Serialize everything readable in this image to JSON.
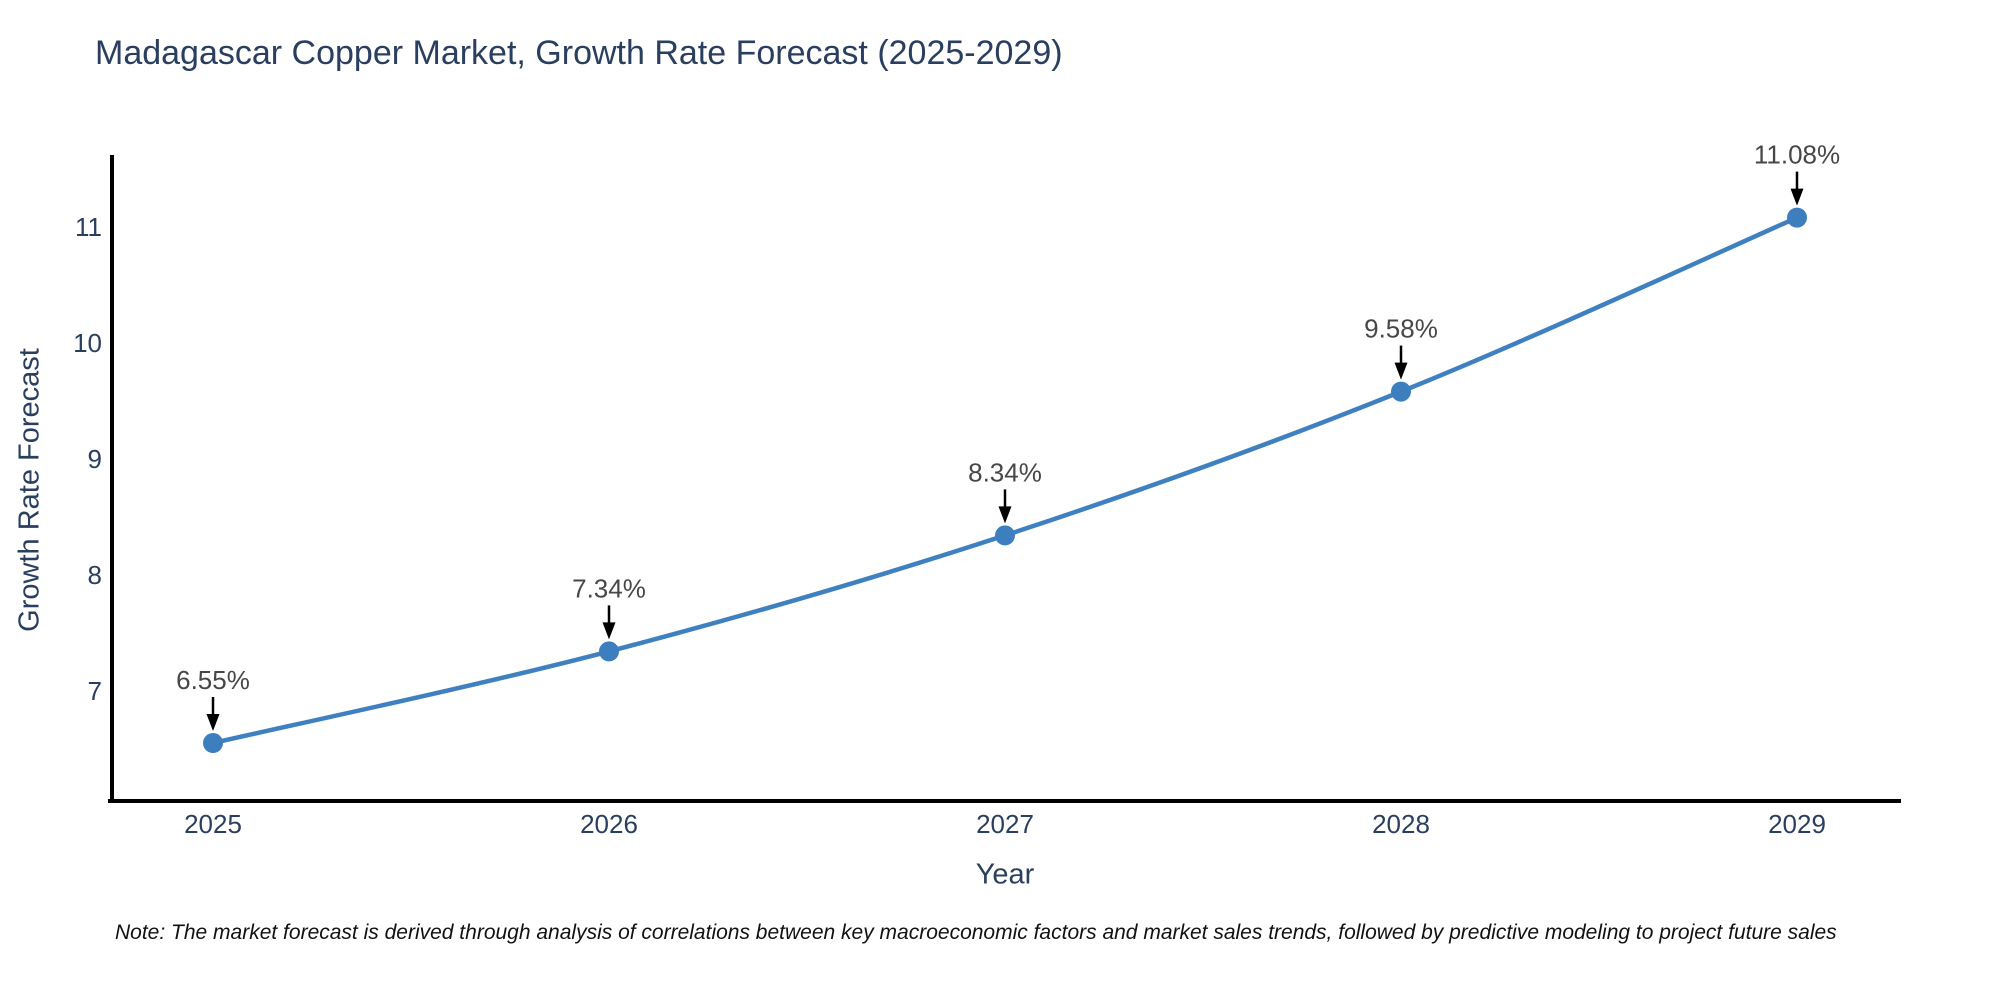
{
  "note": "Note: The market forecast is derived through analysis of correlations between key macroeconomic factors and market sales trends, followed by predictive modeling to project future sales",
  "chart_data": {
    "type": "line",
    "title": "Madagascar Copper Market, Growth Rate Forecast (2025-2029)",
    "xlabel": "Year",
    "ylabel": "Growth Rate Forecast",
    "categories": [
      "2025",
      "2026",
      "2027",
      "2028",
      "2029"
    ],
    "series": [
      {
        "name": "Growth Rate Forecast",
        "values": [
          6.55,
          7.34,
          8.34,
          9.58,
          11.08
        ]
      }
    ],
    "point_labels": [
      "6.55%",
      "7.34%",
      "8.34%",
      "9.58%",
      "11.08%"
    ],
    "y_ticks": [
      7,
      8,
      9,
      10,
      11
    ],
    "ylim": [
      6.05,
      11.62
    ],
    "line_shape": "spline",
    "grid": false,
    "legend": "none",
    "colors": {
      "line": "#3f80c0",
      "marker": "#3d7ebf",
      "axis": "#000000",
      "text": "#2a3f5f",
      "annotation_text": "#474747",
      "arrow": "#000000",
      "background": "#ffffff"
    }
  }
}
